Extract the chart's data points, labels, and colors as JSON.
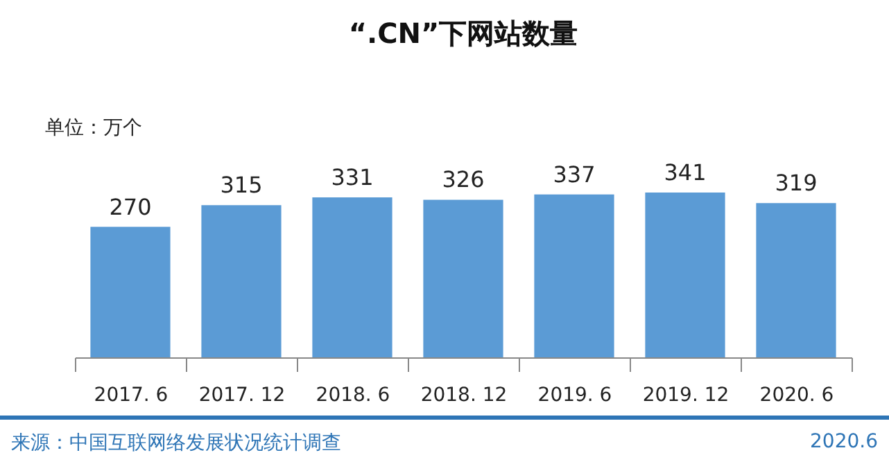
{
  "chart_data": {
    "type": "bar",
    "title": "“.CN”下网站数量",
    "ylabel": "单位：万个",
    "categories": [
      "2017. 6",
      "2017. 12",
      "2018. 6",
      "2018. 12",
      "2019. 6",
      "2019. 12",
      "2020. 6"
    ],
    "values": [
      270,
      315,
      331,
      326,
      337,
      341,
      319
    ],
    "color": "#5b9bd5",
    "data_labels": true,
    "tick_labels": "x",
    "annotations": [
      "来源：中国互联网络发展状况统计调查",
      "2020.6"
    ]
  }
}
